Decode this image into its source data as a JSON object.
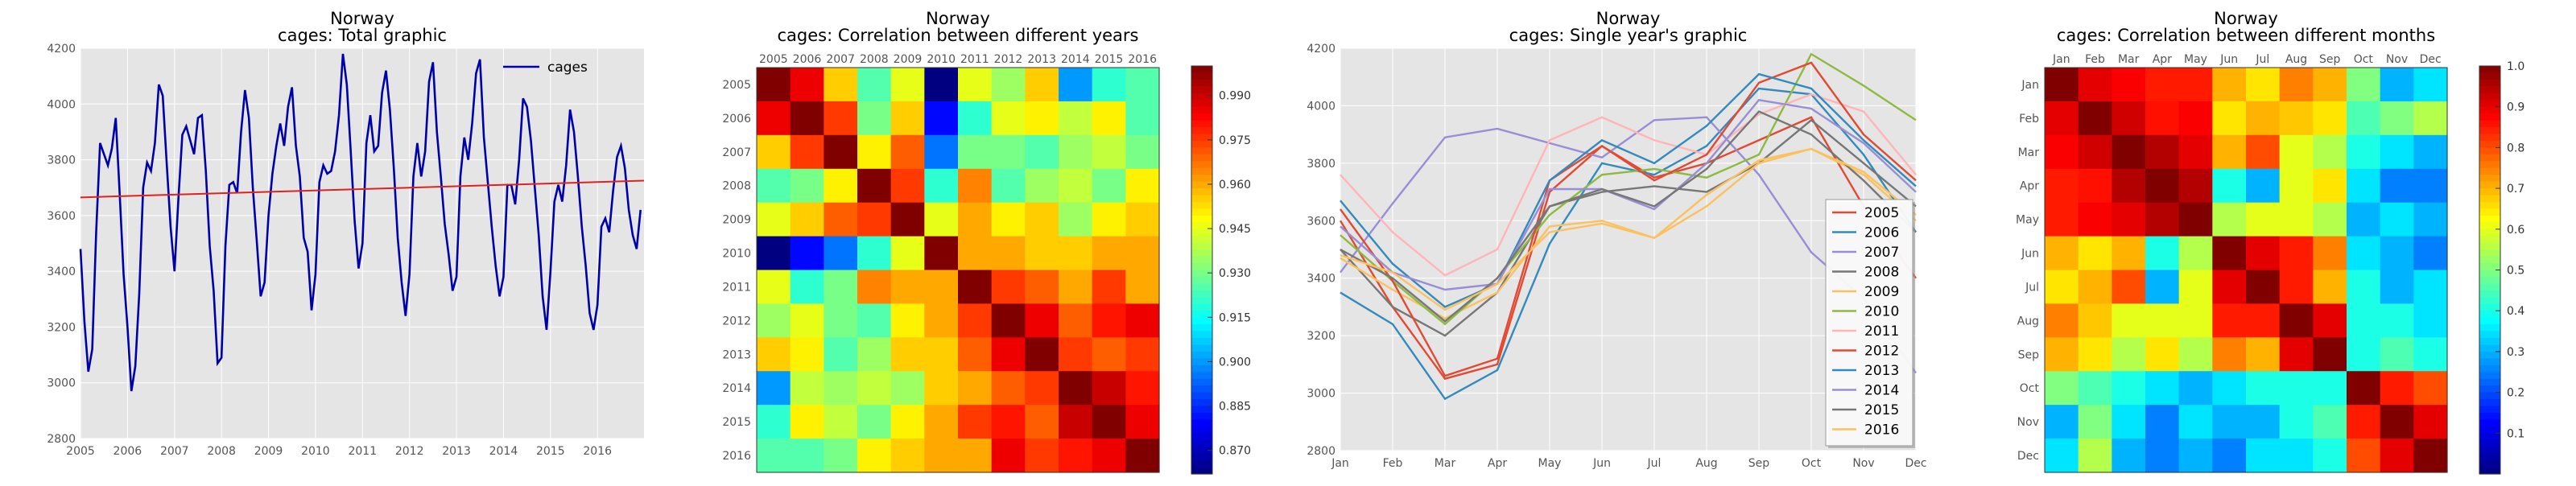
{
  "chart_data": [
    {
      "type": "line",
      "title_line1": "Norway",
      "title_line2": "cages: Total graphic",
      "x_tick_labels": [
        "2005",
        "2006",
        "2007",
        "2008",
        "2009",
        "2010",
        "2011",
        "2012",
        "2013",
        "2014",
        "2015",
        "2016"
      ],
      "y_tick_labels": [
        "2800",
        "3000",
        "3200",
        "3400",
        "3600",
        "3800",
        "4000",
        "4200"
      ],
      "xlim": [
        2005.0,
        2016.99
      ],
      "ylim": [
        2800,
        4200
      ],
      "grid": true,
      "legend_position": "top-right",
      "series": [
        {
          "name": "cages",
          "color": "#0000aa",
          "x_start": 2005.0,
          "x_step_months": 1,
          "values": [
            3480,
            3220,
            3040,
            3120,
            3540,
            3860,
            3820,
            3780,
            3840,
            3950,
            3680,
            3390,
            3200,
            2970,
            3060,
            3320,
            3700,
            3790,
            3760,
            3860,
            4070,
            4030,
            3790,
            3560,
            3400,
            3660,
            3890,
            3920,
            3870,
            3820,
            3950,
            3960,
            3760,
            3490,
            3330,
            3070,
            3090,
            3490,
            3710,
            3720,
            3680,
            3900,
            4050,
            3950,
            3700,
            3510,
            3310,
            3360,
            3600,
            3750,
            3850,
            3930,
            3850,
            3990,
            4060,
            3850,
            3740,
            3520,
            3470,
            3260,
            3390,
            3720,
            3780,
            3750,
            3760,
            3830,
            3960,
            4180,
            4070,
            3830,
            3580,
            3410,
            3500,
            3860,
            3960,
            3830,
            3850,
            4040,
            4120,
            3980,
            3770,
            3520,
            3360,
            3240,
            3390,
            3740,
            3860,
            3740,
            3830,
            4080,
            4150,
            3900,
            3740,
            3570,
            3460,
            3330,
            3380,
            3740,
            3880,
            3800,
            3930,
            4110,
            4160,
            3880,
            3720,
            3560,
            3420,
            3310,
            3380,
            3710,
            3710,
            3640,
            3800,
            4020,
            3990,
            3870,
            3700,
            3530,
            3310,
            3190,
            3400,
            3650,
            3710,
            3650,
            3780,
            3980,
            3900,
            3740,
            3560,
            3420,
            3250,
            3190,
            3280,
            3560,
            3590,
            3540,
            3690,
            3810,
            3850,
            3770,
            3620,
            3530,
            3480,
            3620
          ]
        },
        {
          "name": "",
          "color": "#dd2222",
          "trend": true,
          "x": [
            2005.0,
            2016.99
          ],
          "values": [
            3665,
            3725
          ]
        }
      ]
    },
    {
      "type": "heatmap",
      "title_line1": "Norway",
      "title_line2": "cages: Correlation between different years",
      "x_categories": [
        "2005",
        "2006",
        "2007",
        "2008",
        "2009",
        "2010",
        "2011",
        "2012",
        "2013",
        "2014",
        "2015",
        "2016"
      ],
      "y_categories": [
        "2005",
        "2006",
        "2007",
        "2008",
        "2009",
        "2010",
        "2011",
        "2012",
        "2013",
        "2014",
        "2015",
        "2016"
      ],
      "vmin": 0.862,
      "vmax": 1.0,
      "colorbar_ticks": [
        "0.870",
        "0.885",
        "0.900",
        "0.915",
        "0.930",
        "0.945",
        "0.960",
        "0.975",
        "0.990"
      ],
      "colorbar_values": [
        0.87,
        0.885,
        0.9,
        0.915,
        0.93,
        0.945,
        0.96,
        0.975,
        0.99
      ],
      "values": [
        [
          1.0,
          0.985,
          0.955,
          0.925,
          0.945,
          0.862,
          0.945,
          0.935,
          0.955,
          0.9,
          0.92,
          0.925
        ],
        [
          0.985,
          1.0,
          0.975,
          0.93,
          0.955,
          0.88,
          0.92,
          0.945,
          0.95,
          0.94,
          0.95,
          0.925
        ],
        [
          0.955,
          0.975,
          1.0,
          0.95,
          0.97,
          0.895,
          0.93,
          0.93,
          0.925,
          0.935,
          0.94,
          0.93
        ],
        [
          0.925,
          0.93,
          0.95,
          1.0,
          0.975,
          0.92,
          0.965,
          0.925,
          0.935,
          0.94,
          0.93,
          0.95
        ],
        [
          0.945,
          0.955,
          0.97,
          0.975,
          1.0,
          0.945,
          0.96,
          0.95,
          0.955,
          0.935,
          0.95,
          0.955
        ],
        [
          0.862,
          0.88,
          0.895,
          0.92,
          0.945,
          1.0,
          0.96,
          0.96,
          0.955,
          0.955,
          0.96,
          0.96
        ],
        [
          0.945,
          0.92,
          0.93,
          0.965,
          0.96,
          0.96,
          1.0,
          0.975,
          0.97,
          0.96,
          0.975,
          0.96
        ],
        [
          0.935,
          0.945,
          0.93,
          0.925,
          0.95,
          0.96,
          0.975,
          1.0,
          0.985,
          0.97,
          0.98,
          0.985
        ],
        [
          0.955,
          0.95,
          0.925,
          0.935,
          0.955,
          0.955,
          0.97,
          0.985,
          1.0,
          0.975,
          0.97,
          0.975
        ],
        [
          0.9,
          0.94,
          0.935,
          0.94,
          0.935,
          0.955,
          0.96,
          0.97,
          0.975,
          1.0,
          0.99,
          0.98
        ],
        [
          0.92,
          0.95,
          0.94,
          0.93,
          0.95,
          0.96,
          0.975,
          0.98,
          0.97,
          0.99,
          1.0,
          0.985
        ],
        [
          0.925,
          0.925,
          0.93,
          0.95,
          0.955,
          0.96,
          0.96,
          0.985,
          0.975,
          0.98,
          0.985,
          1.0
        ]
      ]
    },
    {
      "type": "line",
      "title_line1": "Norway",
      "title_line2": "cages: Single year's graphic",
      "categories": [
        "Jan",
        "Feb",
        "Mar",
        "Apr",
        "May",
        "Jun",
        "Jul",
        "Aug",
        "Sep",
        "Oct",
        "Nov",
        "Dec"
      ],
      "y_tick_labels": [
        "2800",
        "3000",
        "3200",
        "3400",
        "3600",
        "3800",
        "4000",
        "4200"
      ],
      "ylim": [
        2800,
        4200
      ],
      "grid": true,
      "legend_position": "lower-right",
      "series": [
        {
          "name": "2005",
          "color": "#e24a33",
          "values": [
            3600,
            3300,
            3050,
            3100,
            3700,
            3860,
            3750,
            3800,
            3880,
            3960,
            3650,
            3400
          ]
        },
        {
          "name": "2006",
          "color": "#348abd",
          "values": [
            3350,
            3240,
            2980,
            3080,
            3520,
            3800,
            3760,
            3860,
            4060,
            4040,
            3830,
            3560
          ]
        },
        {
          "name": "2007",
          "color": "#988ed5",
          "values": [
            3420,
            3660,
            3890,
            3920,
            3870,
            3820,
            3950,
            3960,
            3760,
            3490,
            3330,
            3070
          ]
        },
        {
          "name": "2008",
          "color": "#777777",
          "values": [
            3500,
            3300,
            3200,
            3350,
            3650,
            3700,
            3720,
            3700,
            3800,
            3950,
            3800,
            3650
          ]
        },
        {
          "name": "2009",
          "color": "#fbc15e",
          "values": [
            3470,
            3360,
            3260,
            3350,
            3580,
            3600,
            3540,
            3650,
            3800,
            3850,
            3760,
            3600
          ]
        },
        {
          "name": "2010",
          "color": "#8eba42",
          "values": [
            3550,
            3390,
            3240,
            3400,
            3620,
            3760,
            3780,
            3750,
            3830,
            4180,
            4070,
            3950
          ]
        },
        {
          "name": "2011",
          "color": "#ffb5b8",
          "values": [
            3760,
            3560,
            3410,
            3500,
            3880,
            3960,
            3880,
            3830,
            3970,
            4040,
            3980,
            3760
          ]
        },
        {
          "name": "2012",
          "color": "#e24a33",
          "values": [
            3640,
            3390,
            3060,
            3120,
            3740,
            3860,
            3740,
            3830,
            4080,
            4150,
            3900,
            3740
          ]
        },
        {
          "name": "2013",
          "color": "#348abd",
          "values": [
            3670,
            3450,
            3300,
            3380,
            3740,
            3880,
            3800,
            3930,
            4110,
            4060,
            3880,
            3720
          ]
        },
        {
          "name": "2014",
          "color": "#988ed5",
          "values": [
            3580,
            3420,
            3360,
            3380,
            3710,
            3710,
            3640,
            3800,
            4020,
            3990,
            3870,
            3700
          ]
        },
        {
          "name": "2015",
          "color": "#777777",
          "values": [
            3500,
            3400,
            3250,
            3400,
            3650,
            3710,
            3650,
            3780,
            3980,
            3900,
            3740,
            3560
          ]
        },
        {
          "name": "2016",
          "color": "#fbc15e",
          "values": [
            3480,
            3420,
            3290,
            3380,
            3560,
            3590,
            3540,
            3690,
            3810,
            3850,
            3770,
            3620
          ]
        }
      ]
    },
    {
      "type": "heatmap",
      "title_line1": "Norway",
      "title_line2": "cages: Correlation between different months",
      "x_categories": [
        "Jan",
        "Feb",
        "Mar",
        "Apr",
        "May",
        "Jun",
        "Jul",
        "Aug",
        "Sep",
        "Oct",
        "Nov",
        "Dec"
      ],
      "y_categories": [
        "Jan",
        "Feb",
        "Mar",
        "Apr",
        "May",
        "Jun",
        "Jul",
        "Aug",
        "Sep",
        "Oct",
        "Nov",
        "Dec"
      ],
      "vmin": 0.0,
      "vmax": 1.0,
      "colorbar_ticks": [
        "0.1",
        "0.2",
        "0.3",
        "0.4",
        "0.5",
        "0.6",
        "0.7",
        "0.8",
        "0.9",
        "1.0"
      ],
      "colorbar_values": [
        0.1,
        0.2,
        0.3,
        0.4,
        0.5,
        0.6,
        0.7,
        0.8,
        0.9,
        1.0
      ],
      "values": [
        [
          1.0,
          0.9,
          0.88,
          0.85,
          0.85,
          0.7,
          0.65,
          0.75,
          0.7,
          0.5,
          0.3,
          0.35
        ],
        [
          0.9,
          1.0,
          0.92,
          0.86,
          0.88,
          0.65,
          0.7,
          0.68,
          0.65,
          0.45,
          0.5,
          0.55
        ],
        [
          0.88,
          0.92,
          1.0,
          0.95,
          0.9,
          0.7,
          0.8,
          0.6,
          0.55,
          0.4,
          0.35,
          0.3
        ],
        [
          0.85,
          0.86,
          0.95,
          1.0,
          0.95,
          0.4,
          0.3,
          0.6,
          0.65,
          0.35,
          0.25,
          0.25
        ],
        [
          0.85,
          0.88,
          0.9,
          0.95,
          1.0,
          0.55,
          0.6,
          0.6,
          0.55,
          0.3,
          0.35,
          0.3
        ],
        [
          0.7,
          0.65,
          0.7,
          0.4,
          0.55,
          1.0,
          0.9,
          0.85,
          0.75,
          0.35,
          0.3,
          0.25
        ],
        [
          0.65,
          0.7,
          0.8,
          0.3,
          0.6,
          0.9,
          1.0,
          0.85,
          0.7,
          0.4,
          0.3,
          0.35
        ],
        [
          0.75,
          0.68,
          0.6,
          0.6,
          0.6,
          0.85,
          0.85,
          1.0,
          0.9,
          0.4,
          0.4,
          0.35
        ],
        [
          0.7,
          0.65,
          0.55,
          0.65,
          0.55,
          0.75,
          0.7,
          0.9,
          1.0,
          0.4,
          0.45,
          0.4
        ],
        [
          0.5,
          0.45,
          0.4,
          0.35,
          0.3,
          0.35,
          0.4,
          0.4,
          0.4,
          1.0,
          0.85,
          0.8
        ],
        [
          0.3,
          0.5,
          0.35,
          0.25,
          0.35,
          0.3,
          0.3,
          0.4,
          0.45,
          0.85,
          1.0,
          0.9
        ],
        [
          0.35,
          0.55,
          0.3,
          0.25,
          0.3,
          0.25,
          0.35,
          0.35,
          0.4,
          0.8,
          0.9,
          1.0
        ]
      ]
    }
  ]
}
